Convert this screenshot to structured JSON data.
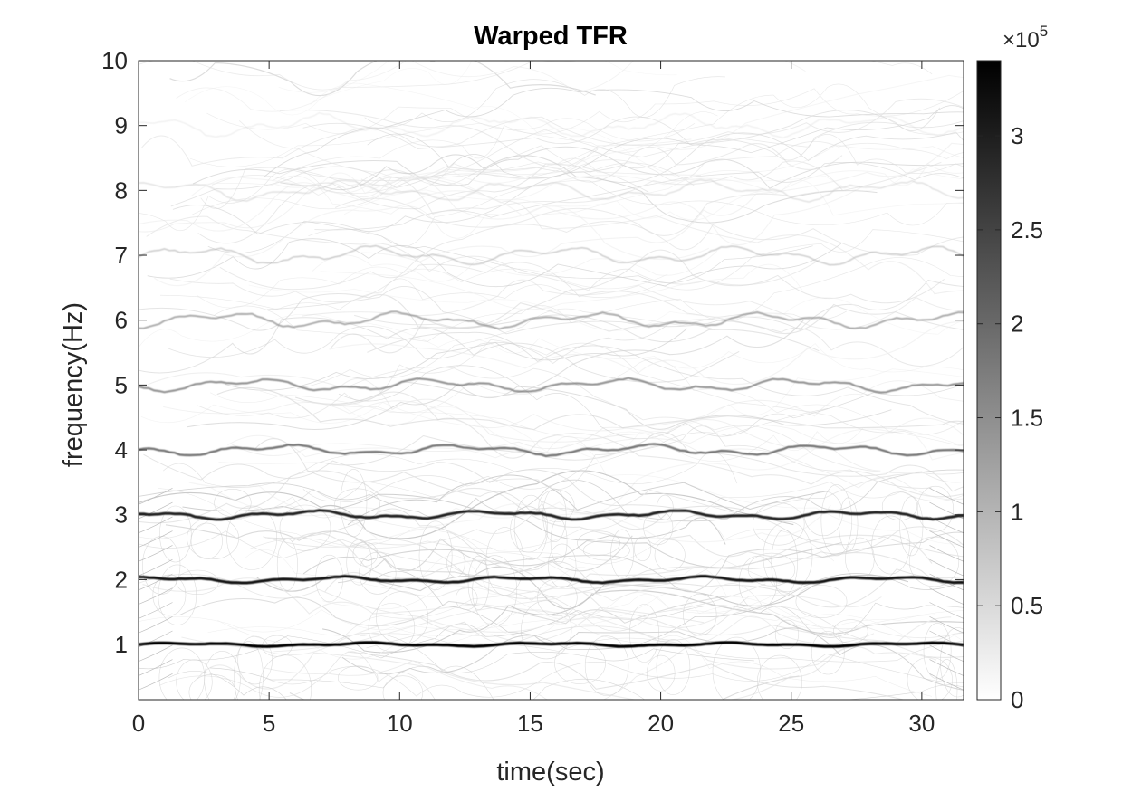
{
  "chart_data": {
    "type": "heatmap",
    "title": "Warped TFR",
    "xlabel": "time(sec)",
    "ylabel": "frequency(Hz)",
    "xlim": [
      0,
      31.6
    ],
    "ylim": [
      0.15,
      10
    ],
    "xticks": [
      0,
      5,
      10,
      15,
      20,
      25,
      30
    ],
    "yticks": [
      1,
      2,
      3,
      4,
      5,
      6,
      7,
      8,
      9,
      10
    ],
    "colormap": "gray-reversed",
    "colorbar": {
      "range": [
        0,
        340000
      ],
      "ticks": [
        0,
        0.5,
        1,
        1.5,
        2,
        2.5,
        3
      ],
      "exponent_base": "×10",
      "exponent": "5"
    },
    "ridges": [
      {
        "frequency": 1,
        "relative_intensity": 1.0
      },
      {
        "frequency": 2,
        "relative_intensity": 0.95
      },
      {
        "frequency": 3,
        "relative_intensity": 0.9
      },
      {
        "frequency": 4,
        "relative_intensity": 0.65
      },
      {
        "frequency": 5,
        "relative_intensity": 0.55
      },
      {
        "frequency": 6,
        "relative_intensity": 0.45
      },
      {
        "frequency": 7,
        "relative_intensity": 0.3
      },
      {
        "frequency": 8,
        "relative_intensity": 0.2
      },
      {
        "frequency": 9,
        "relative_intensity": 0.12
      }
    ]
  }
}
